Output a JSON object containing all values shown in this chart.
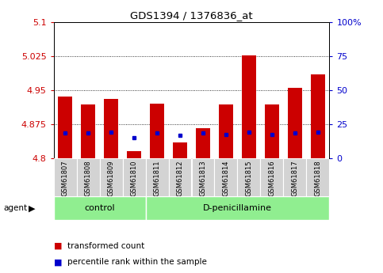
{
  "title": "GDS1394 / 1376836_at",
  "samples": [
    "GSM61807",
    "GSM61808",
    "GSM61809",
    "GSM61810",
    "GSM61811",
    "GSM61812",
    "GSM61813",
    "GSM61814",
    "GSM61815",
    "GSM61816",
    "GSM61817",
    "GSM61818"
  ],
  "red_values": [
    4.935,
    4.918,
    4.93,
    4.815,
    4.92,
    4.835,
    4.866,
    4.918,
    5.026,
    4.918,
    4.955,
    4.985
  ],
  "blue_values": [
    4.855,
    4.855,
    4.858,
    4.845,
    4.856,
    4.85,
    4.855,
    4.853,
    4.858,
    4.853,
    4.856,
    4.857
  ],
  "ymin": 4.8,
  "ymax": 5.1,
  "yticks": [
    4.8,
    4.875,
    4.95,
    5.025,
    5.1
  ],
  "ytick_labels": [
    "4.8",
    "4.875",
    "4.95",
    "5.025",
    "5.1"
  ],
  "y2ticks": [
    0,
    25,
    50,
    75,
    100
  ],
  "y2tick_labels": [
    "0",
    "25",
    "50",
    "75",
    "100%"
  ],
  "groups": [
    {
      "label": "control",
      "start": 0,
      "end": 3
    },
    {
      "label": "D-penicillamine",
      "start": 4,
      "end": 11
    }
  ],
  "group_color": "#90EE90",
  "bar_color": "#CC0000",
  "dot_color": "#0000CC",
  "bar_bottom": 4.8,
  "bar_width": 0.6,
  "grid_color": "#000000",
  "legend_items": [
    {
      "color": "#CC0000",
      "label": "transformed count"
    },
    {
      "color": "#0000CC",
      "label": "percentile rank within the sample"
    }
  ],
  "agent_label": "agent",
  "left_color": "#CC0000",
  "right_color": "#0000CC"
}
